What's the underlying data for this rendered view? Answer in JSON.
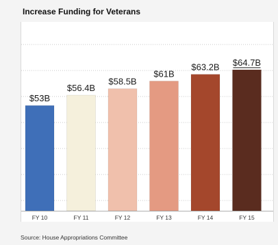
{
  "chart_data": {
    "type": "bar",
    "title": "Increase Funding for Veterans",
    "categories": [
      "FY 10",
      "FY 11",
      "FY 12",
      "FY 13",
      "FY 14",
      "FY 15"
    ],
    "values": [
      53,
      56.4,
      58.5,
      61,
      63.2,
      64.7
    ],
    "value_labels": [
      "$53B",
      "$56.4B",
      "$58.5B",
      "$61B",
      "$63.2B",
      "$64.7B"
    ],
    "bar_colors": [
      "#3f6fb8",
      "#f5f0dc",
      "#f0c0ac",
      "#e49a82",
      "#a4472c",
      "#5a2c1f"
    ],
    "xlabel": "",
    "ylabel": "",
    "grid": true,
    "legend": "none"
  },
  "source": "Source: House Appropriations Committee"
}
